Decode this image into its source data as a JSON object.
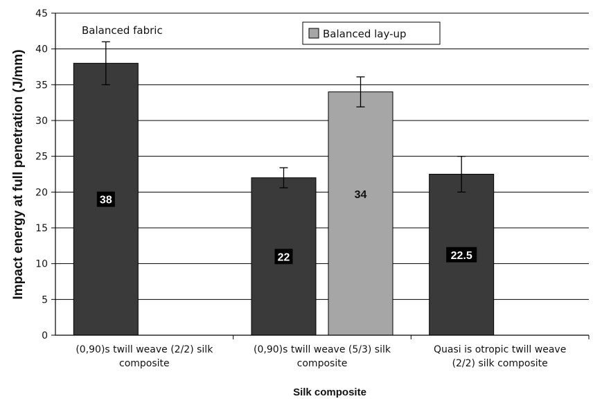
{
  "chart_data": {
    "type": "bar",
    "ylabel": "Impact energy at full penetration (J/mm)",
    "xlabel": "Silk composite",
    "ylim": [
      0,
      45
    ],
    "yticks": [
      0,
      5,
      10,
      15,
      20,
      25,
      30,
      35,
      40,
      45
    ],
    "grid": true,
    "categories": [
      [
        "(0,90)s twill weave (2/2) silk",
        "composite"
      ],
      [
        "(0,90)s twill weave (5/3) silk",
        "composite"
      ],
      [
        "Quasi is otropic twill weave",
        "(2/2) silk composite"
      ]
    ],
    "series": [
      {
        "name": "Balanced fabric",
        "color": "#3a3a3a",
        "values": [
          38,
          22,
          22.5
        ],
        "errors": [
          3,
          1.4,
          2.5
        ],
        "labels": [
          "38",
          "22",
          "22.5"
        ]
      },
      {
        "name": "Balanced lay-up",
        "color": "#a6a6a6",
        "values": [
          null,
          34,
          null
        ],
        "errors": [
          null,
          2.1,
          null
        ],
        "labels": [
          "",
          "34",
          ""
        ]
      }
    ],
    "annotation": "Balanced fabric",
    "legend": {
      "entries": [
        "Balanced lay-up"
      ],
      "placement": "top-center"
    }
  }
}
